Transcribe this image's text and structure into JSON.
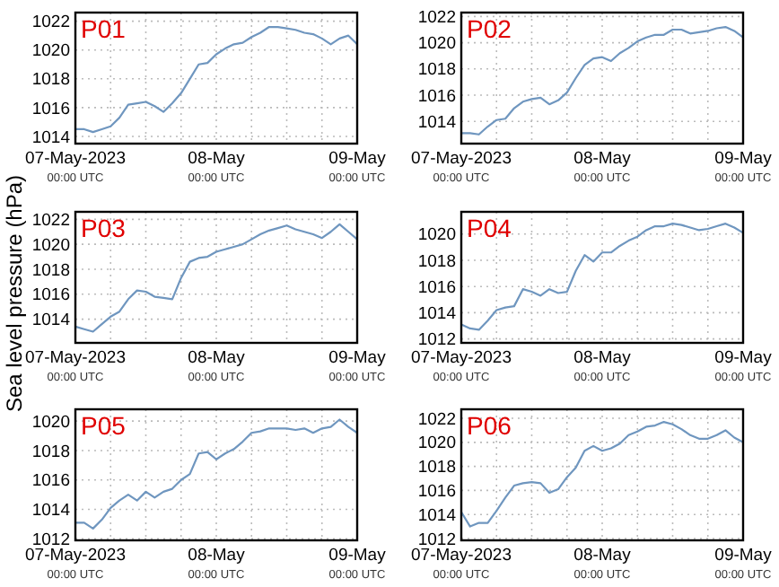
{
  "chart_data": [
    {
      "type": "line",
      "title": "P01",
      "x": [
        "2023-05-07T00:00",
        "2023-05-07T01:30",
        "2023-05-07T03:00",
        "2023-05-07T04:30",
        "2023-05-07T06:00",
        "2023-05-07T07:30",
        "2023-05-07T09:00",
        "2023-05-07T10:30",
        "2023-05-07T12:00",
        "2023-05-07T13:30",
        "2023-05-07T15:00",
        "2023-05-07T16:30",
        "2023-05-07T18:00",
        "2023-05-07T19:30",
        "2023-05-07T21:00",
        "2023-05-07T22:30",
        "2023-05-08T00:00",
        "2023-05-08T01:30",
        "2023-05-08T03:00",
        "2023-05-08T04:30",
        "2023-05-08T06:00",
        "2023-05-08T07:30",
        "2023-05-08T09:00",
        "2023-05-08T10:30",
        "2023-05-08T12:00",
        "2023-05-08T13:30",
        "2023-05-08T15:00",
        "2023-05-08T16:30",
        "2023-05-08T18:00",
        "2023-05-08T19:30",
        "2023-05-08T21:00",
        "2023-05-08T22:30",
        "2023-05-09T00:00"
      ],
      "series": [
        {
          "color": "#6f96bf",
          "values": [
            1014.5,
            1014.5,
            1014.3,
            1014.5,
            1014.7,
            1015.3,
            1016.2,
            1016.3,
            1016.4,
            1016.1,
            1015.7,
            1016.3,
            1017.0,
            1018.0,
            1019.0,
            1019.1,
            1019.7,
            1020.1,
            1020.4,
            1020.5,
            1020.9,
            1021.2,
            1021.6,
            1021.6,
            1021.5,
            1021.4,
            1021.2,
            1021.1,
            1020.8,
            1020.4,
            1020.8,
            1021.0,
            1020.4
          ]
        }
      ],
      "xlim": [
        "2023-05-07T00:00",
        "2023-05-09T00:00"
      ],
      "xticks": [
        {
          "value": "2023-05-07T00:00",
          "label": "07-May-2023\n00:00 UTC"
        },
        {
          "value": "2023-05-07T06:00",
          "label": null
        },
        {
          "value": "2023-05-07T12:00",
          "label": null
        },
        {
          "value": "2023-05-07T18:00",
          "label": null
        },
        {
          "value": "2023-05-08T00:00",
          "label": "08-May\n00:00 UTC"
        },
        {
          "value": "2023-05-08T06:00",
          "label": null
        },
        {
          "value": "2023-05-08T12:00",
          "label": null
        },
        {
          "value": "2023-05-08T18:00",
          "label": null
        },
        {
          "value": "2023-05-09T00:00",
          "label": "09-May\n00:00 UTC"
        }
      ],
      "ylim": [
        1013.5,
        1022.6
      ],
      "yticks": [
        1014,
        1016,
        1018,
        1020,
        1022
      ],
      "grid": true
    },
    {
      "type": "line",
      "title": "P02",
      "x": [
        "2023-05-07T00:00",
        "2023-05-07T01:30",
        "2023-05-07T03:00",
        "2023-05-07T04:30",
        "2023-05-07T06:00",
        "2023-05-07T07:30",
        "2023-05-07T09:00",
        "2023-05-07T10:30",
        "2023-05-07T12:00",
        "2023-05-07T13:30",
        "2023-05-07T15:00",
        "2023-05-07T16:30",
        "2023-05-07T18:00",
        "2023-05-07T19:30",
        "2023-05-07T21:00",
        "2023-05-07T22:30",
        "2023-05-08T00:00",
        "2023-05-08T01:30",
        "2023-05-08T03:00",
        "2023-05-08T04:30",
        "2023-05-08T06:00",
        "2023-05-08T07:30",
        "2023-05-08T09:00",
        "2023-05-08T10:30",
        "2023-05-08T12:00",
        "2023-05-08T13:30",
        "2023-05-08T15:00",
        "2023-05-08T16:30",
        "2023-05-08T18:00",
        "2023-05-08T19:30",
        "2023-05-08T21:00",
        "2023-05-08T22:30",
        "2023-05-09T00:00"
      ],
      "series": [
        {
          "color": "#6f96bf",
          "values": [
            1013.1,
            1013.1,
            1013.0,
            1013.6,
            1014.1,
            1014.2,
            1015.0,
            1015.5,
            1015.7,
            1015.8,
            1015.3,
            1015.6,
            1016.2,
            1017.3,
            1018.3,
            1018.8,
            1018.9,
            1018.6,
            1019.2,
            1019.6,
            1020.1,
            1020.4,
            1020.6,
            1020.6,
            1021.0,
            1021.0,
            1020.7,
            1020.8,
            1020.9,
            1021.1,
            1021.2,
            1020.9,
            1020.4
          ]
        }
      ],
      "xlim": [
        "2023-05-07T00:00",
        "2023-05-09T00:00"
      ],
      "xticks": [
        {
          "value": "2023-05-07T00:00",
          "label": "07-May-2023\n00:00 UTC"
        },
        {
          "value": "2023-05-07T06:00",
          "label": null
        },
        {
          "value": "2023-05-07T12:00",
          "label": null
        },
        {
          "value": "2023-05-07T18:00",
          "label": null
        },
        {
          "value": "2023-05-08T00:00",
          "label": "08-May\n00:00 UTC"
        },
        {
          "value": "2023-05-08T06:00",
          "label": null
        },
        {
          "value": "2023-05-08T12:00",
          "label": null
        },
        {
          "value": "2023-05-08T18:00",
          "label": null
        },
        {
          "value": "2023-05-09T00:00",
          "label": "09-May\n00:00 UTC"
        }
      ],
      "ylim": [
        1012.3,
        1022.3
      ],
      "yticks": [
        1014,
        1016,
        1018,
        1020,
        1022
      ],
      "grid": true
    },
    {
      "type": "line",
      "title": "P03",
      "ylabel": "Sea level pressure (hPa)",
      "x": [
        "2023-05-07T00:00",
        "2023-05-07T01:30",
        "2023-05-07T03:00",
        "2023-05-07T04:30",
        "2023-05-07T06:00",
        "2023-05-07T07:30",
        "2023-05-07T09:00",
        "2023-05-07T10:30",
        "2023-05-07T12:00",
        "2023-05-07T13:30",
        "2023-05-07T15:00",
        "2023-05-07T16:30",
        "2023-05-07T18:00",
        "2023-05-07T19:30",
        "2023-05-07T21:00",
        "2023-05-07T22:30",
        "2023-05-08T00:00",
        "2023-05-08T01:30",
        "2023-05-08T03:00",
        "2023-05-08T04:30",
        "2023-05-08T06:00",
        "2023-05-08T07:30",
        "2023-05-08T09:00",
        "2023-05-08T10:30",
        "2023-05-08T12:00",
        "2023-05-08T13:30",
        "2023-05-08T15:00",
        "2023-05-08T16:30",
        "2023-05-08T18:00",
        "2023-05-08T19:30",
        "2023-05-08T21:00",
        "2023-05-08T22:30",
        "2023-05-09T00:00"
      ],
      "series": [
        {
          "color": "#6f96bf",
          "values": [
            1013.4,
            1013.2,
            1013.0,
            1013.6,
            1014.2,
            1014.6,
            1015.6,
            1016.3,
            1016.2,
            1015.8,
            1015.7,
            1015.6,
            1017.3,
            1018.6,
            1018.9,
            1019.0,
            1019.4,
            1019.6,
            1019.8,
            1020.0,
            1020.4,
            1020.8,
            1021.1,
            1021.3,
            1021.5,
            1021.2,
            1021.0,
            1020.8,
            1020.5,
            1021.0,
            1021.6,
            1021.0,
            1020.4
          ]
        }
      ],
      "xlim": [
        "2023-05-07T00:00",
        "2023-05-09T00:00"
      ],
      "xticks": [
        {
          "value": "2023-05-07T00:00",
          "label": "07-May-2023\n00:00 UTC"
        },
        {
          "value": "2023-05-07T06:00",
          "label": null
        },
        {
          "value": "2023-05-07T12:00",
          "label": null
        },
        {
          "value": "2023-05-07T18:00",
          "label": null
        },
        {
          "value": "2023-05-08T00:00",
          "label": "08-May\n00:00 UTC"
        },
        {
          "value": "2023-05-08T06:00",
          "label": null
        },
        {
          "value": "2023-05-08T12:00",
          "label": null
        },
        {
          "value": "2023-05-08T18:00",
          "label": null
        },
        {
          "value": "2023-05-09T00:00",
          "label": "09-May\n00:00 UTC"
        }
      ],
      "ylim": [
        1012.1,
        1022.6
      ],
      "yticks": [
        1014,
        1016,
        1018,
        1020,
        1022
      ],
      "grid": true
    },
    {
      "type": "line",
      "title": "P04",
      "x": [
        "2023-05-07T00:00",
        "2023-05-07T01:30",
        "2023-05-07T03:00",
        "2023-05-07T04:30",
        "2023-05-07T06:00",
        "2023-05-07T07:30",
        "2023-05-07T09:00",
        "2023-05-07T10:30",
        "2023-05-07T12:00",
        "2023-05-07T13:30",
        "2023-05-07T15:00",
        "2023-05-07T16:30",
        "2023-05-07T18:00",
        "2023-05-07T19:30",
        "2023-05-07T21:00",
        "2023-05-07T22:30",
        "2023-05-08T00:00",
        "2023-05-08T01:30",
        "2023-05-08T03:00",
        "2023-05-08T04:30",
        "2023-05-08T06:00",
        "2023-05-08T07:30",
        "2023-05-08T09:00",
        "2023-05-08T10:30",
        "2023-05-08T12:00",
        "2023-05-08T13:30",
        "2023-05-08T15:00",
        "2023-05-08T16:30",
        "2023-05-08T18:00",
        "2023-05-08T19:30",
        "2023-05-08T21:00",
        "2023-05-08T22:30",
        "2023-05-09T00:00"
      ],
      "series": [
        {
          "color": "#6f96bf",
          "values": [
            1013.1,
            1012.8,
            1012.7,
            1013.4,
            1014.2,
            1014.4,
            1014.5,
            1015.8,
            1015.6,
            1015.3,
            1015.8,
            1015.5,
            1015.6,
            1017.2,
            1018.4,
            1017.9,
            1018.6,
            1018.6,
            1019.1,
            1019.5,
            1019.8,
            1020.3,
            1020.6,
            1020.6,
            1020.8,
            1020.7,
            1020.5,
            1020.3,
            1020.4,
            1020.6,
            1020.8,
            1020.5,
            1020.1
          ]
        }
      ],
      "xlim": [
        "2023-05-07T00:00",
        "2023-05-09T00:00"
      ],
      "xticks": [
        {
          "value": "2023-05-07T00:00",
          "label": "07-May-2023\n00:00 UTC"
        },
        {
          "value": "2023-05-07T06:00",
          "label": null
        },
        {
          "value": "2023-05-07T12:00",
          "label": null
        },
        {
          "value": "2023-05-07T18:00",
          "label": null
        },
        {
          "value": "2023-05-08T00:00",
          "label": "08-May\n00:00 UTC"
        },
        {
          "value": "2023-05-08T06:00",
          "label": null
        },
        {
          "value": "2023-05-08T12:00",
          "label": null
        },
        {
          "value": "2023-05-08T18:00",
          "label": null
        },
        {
          "value": "2023-05-09T00:00",
          "label": "09-May\n00:00 UTC"
        }
      ],
      "ylim": [
        1011.7,
        1021.7
      ],
      "yticks": [
        1012,
        1014,
        1016,
        1018,
        1020
      ],
      "grid": true
    },
    {
      "type": "line",
      "title": "P05",
      "x": [
        "2023-05-07T00:00",
        "2023-05-07T01:30",
        "2023-05-07T03:00",
        "2023-05-07T04:30",
        "2023-05-07T06:00",
        "2023-05-07T07:30",
        "2023-05-07T09:00",
        "2023-05-07T10:30",
        "2023-05-07T12:00",
        "2023-05-07T13:30",
        "2023-05-07T15:00",
        "2023-05-07T16:30",
        "2023-05-07T18:00",
        "2023-05-07T19:30",
        "2023-05-07T21:00",
        "2023-05-07T22:30",
        "2023-05-08T00:00",
        "2023-05-08T01:30",
        "2023-05-08T03:00",
        "2023-05-08T04:30",
        "2023-05-08T06:00",
        "2023-05-08T07:30",
        "2023-05-08T09:00",
        "2023-05-08T10:30",
        "2023-05-08T12:00",
        "2023-05-08T13:30",
        "2023-05-08T15:00",
        "2023-05-08T16:30",
        "2023-05-08T18:00",
        "2023-05-08T19:30",
        "2023-05-08T21:00",
        "2023-05-08T22:30",
        "2023-05-09T00:00"
      ],
      "series": [
        {
          "color": "#6f96bf",
          "values": [
            1013.1,
            1013.1,
            1012.7,
            1013.3,
            1014.1,
            1014.6,
            1015.0,
            1014.6,
            1015.2,
            1014.8,
            1015.2,
            1015.4,
            1016.0,
            1016.4,
            1017.8,
            1017.9,
            1017.4,
            1017.8,
            1018.1,
            1018.6,
            1019.2,
            1019.3,
            1019.5,
            1019.5,
            1019.5,
            1019.4,
            1019.5,
            1019.2,
            1019.5,
            1019.6,
            1020.1,
            1019.6,
            1019.2
          ]
        }
      ],
      "xlim": [
        "2023-05-07T00:00",
        "2023-05-09T00:00"
      ],
      "xticks": [
        {
          "value": "2023-05-07T00:00",
          "label": "07-May-2023\n00:00 UTC"
        },
        {
          "value": "2023-05-07T06:00",
          "label": null
        },
        {
          "value": "2023-05-07T12:00",
          "label": null
        },
        {
          "value": "2023-05-07T18:00",
          "label": null
        },
        {
          "value": "2023-05-08T00:00",
          "label": "08-May\n00:00 UTC"
        },
        {
          "value": "2023-05-08T06:00",
          "label": null
        },
        {
          "value": "2023-05-08T12:00",
          "label": null
        },
        {
          "value": "2023-05-08T18:00",
          "label": null
        },
        {
          "value": "2023-05-09T00:00",
          "label": "09-May\n00:00 UTC"
        }
      ],
      "ylim": [
        1011.9,
        1020.8
      ],
      "yticks": [
        1012,
        1014,
        1016,
        1018,
        1020
      ],
      "grid": true
    },
    {
      "type": "line",
      "title": "P06",
      "x": [
        "2023-05-07T00:00",
        "2023-05-07T01:30",
        "2023-05-07T03:00",
        "2023-05-07T04:30",
        "2023-05-07T06:00",
        "2023-05-07T07:30",
        "2023-05-07T09:00",
        "2023-05-07T10:30",
        "2023-05-07T12:00",
        "2023-05-07T13:30",
        "2023-05-07T15:00",
        "2023-05-07T16:30",
        "2023-05-07T18:00",
        "2023-05-07T19:30",
        "2023-05-07T21:00",
        "2023-05-07T22:30",
        "2023-05-08T00:00",
        "2023-05-08T01:30",
        "2023-05-08T03:00",
        "2023-05-08T04:30",
        "2023-05-08T06:00",
        "2023-05-08T07:30",
        "2023-05-08T09:00",
        "2023-05-08T10:30",
        "2023-05-08T12:00",
        "2023-05-08T13:30",
        "2023-05-08T15:00",
        "2023-05-08T16:30",
        "2023-05-08T18:00",
        "2023-05-08T19:30",
        "2023-05-08T21:00",
        "2023-05-08T22:30",
        "2023-05-09T00:00"
      ],
      "series": [
        {
          "color": "#6f96bf",
          "values": [
            1014.2,
            1013.0,
            1013.3,
            1013.3,
            1014.3,
            1015.4,
            1016.4,
            1016.6,
            1016.7,
            1016.6,
            1015.8,
            1016.1,
            1017.1,
            1017.9,
            1019.3,
            1019.7,
            1019.3,
            1019.5,
            1019.9,
            1020.6,
            1020.9,
            1021.3,
            1021.4,
            1021.7,
            1021.5,
            1021.1,
            1020.6,
            1020.3,
            1020.3,
            1020.6,
            1021.0,
            1020.4,
            1020.0
          ]
        }
      ],
      "xlim": [
        "2023-05-07T00:00",
        "2023-05-09T00:00"
      ],
      "xticks": [
        {
          "value": "2023-05-07T00:00",
          "label": "07-May-2023\n00:00 UTC"
        },
        {
          "value": "2023-05-07T06:00",
          "label": null
        },
        {
          "value": "2023-05-07T12:00",
          "label": null
        },
        {
          "value": "2023-05-07T18:00",
          "label": null
        },
        {
          "value": "2023-05-08T00:00",
          "label": "08-May\n00:00 UTC"
        },
        {
          "value": "2023-05-08T06:00",
          "label": null
        },
        {
          "value": "2023-05-08T12:00",
          "label": null
        },
        {
          "value": "2023-05-08T18:00",
          "label": null
        },
        {
          "value": "2023-05-09T00:00",
          "label": "09-May\n00:00 UTC"
        }
      ],
      "ylim": [
        1011.85,
        1022.75
      ],
      "yticks": [
        1012,
        1014,
        1016,
        1018,
        1020,
        1022
      ],
      "grid": true
    }
  ]
}
